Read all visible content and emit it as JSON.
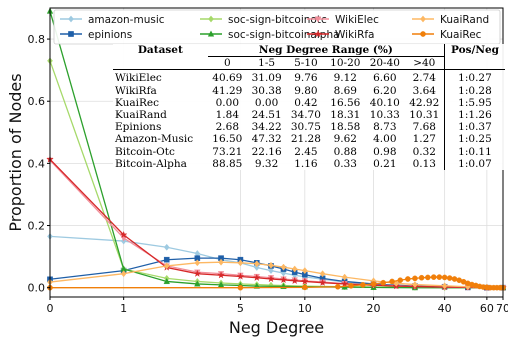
{
  "chart_data": {
    "type": "line",
    "xlabel": "Neg Degree",
    "ylabel": "Proportion of Nodes",
    "x_ticks": [
      0,
      1,
      5,
      10,
      20,
      40,
      60,
      70
    ],
    "x_tick_labels": [
      "0",
      "1",
      "5",
      "10",
      "20",
      "40",
      "60",
      "70"
    ],
    "y_ticks": [
      0.0,
      0.2,
      0.4,
      0.6,
      0.8
    ],
    "y_tick_labels": [
      "0.0",
      "0.2",
      "0.4",
      "0.6",
      "0.8"
    ],
    "ylim": [
      -0.03,
      0.9
    ],
    "xlim": [
      0,
      70
    ],
    "x_scale": "symlog",
    "grid": true,
    "legend_position": "top",
    "series": [
      {
        "name": "amazon-music",
        "color": "#9ecae1",
        "marker": "diamond",
        "points": [
          [
            0,
            0.165
          ],
          [
            1,
            0.15
          ],
          [
            2,
            0.13
          ],
          [
            3,
            0.11
          ],
          [
            4,
            0.09
          ],
          [
            5,
            0.08
          ],
          [
            6,
            0.065
          ],
          [
            7,
            0.055
          ],
          [
            8,
            0.047
          ],
          [
            9,
            0.04
          ],
          [
            10,
            0.035
          ],
          [
            12,
            0.027
          ],
          [
            15,
            0.018
          ],
          [
            20,
            0.01
          ],
          [
            25,
            0.006
          ],
          [
            30,
            0.004
          ],
          [
            40,
            0.002
          ],
          [
            50,
            0.001
          ],
          [
            60,
            0.0
          ],
          [
            70,
            0.0
          ]
        ]
      },
      {
        "name": "epinions",
        "color": "#1f5fa8",
        "marker": "square",
        "points": [
          [
            0,
            0.027
          ],
          [
            1,
            0.055
          ],
          [
            2,
            0.09
          ],
          [
            3,
            0.095
          ],
          [
            4,
            0.095
          ],
          [
            5,
            0.09
          ],
          [
            6,
            0.08
          ],
          [
            7,
            0.07
          ],
          [
            8,
            0.06
          ],
          [
            9,
            0.05
          ],
          [
            10,
            0.042
          ],
          [
            12,
            0.03
          ],
          [
            15,
            0.02
          ],
          [
            20,
            0.012
          ],
          [
            25,
            0.008
          ],
          [
            30,
            0.005
          ],
          [
            40,
            0.003
          ],
          [
            50,
            0.001
          ],
          [
            60,
            0.0
          ],
          [
            70,
            0.0
          ]
        ]
      },
      {
        "name": "soc-sign-bitcoinotc",
        "color": "#a6d96a",
        "marker": "diamond",
        "points": [
          [
            0,
            0.73
          ],
          [
            1,
            0.06
          ],
          [
            2,
            0.03
          ],
          [
            3,
            0.02
          ],
          [
            4,
            0.015
          ],
          [
            5,
            0.012
          ],
          [
            6,
            0.01
          ],
          [
            7,
            0.008
          ],
          [
            8,
            0.007
          ],
          [
            10,
            0.005
          ],
          [
            15,
            0.003
          ],
          [
            20,
            0.002
          ],
          [
            30,
            0.001
          ],
          [
            40,
            0.0
          ],
          [
            70,
            0.0
          ]
        ]
      },
      {
        "name": "soc-sign-bitcoinalpha",
        "color": "#2ca02c",
        "marker": "triangle-up",
        "points": [
          [
            0,
            0.89
          ],
          [
            1,
            0.06
          ],
          [
            2,
            0.02
          ],
          [
            3,
            0.012
          ],
          [
            4,
            0.009
          ],
          [
            5,
            0.007
          ],
          [
            6,
            0.005
          ],
          [
            8,
            0.004
          ],
          [
            10,
            0.003
          ],
          [
            15,
            0.002
          ],
          [
            20,
            0.001
          ],
          [
            30,
            0.0
          ],
          [
            70,
            0.0
          ]
        ]
      },
      {
        "name": "WikiElec",
        "color": "#f28e9a",
        "marker": "triangle-down",
        "points": [
          [
            0,
            0.41
          ],
          [
            1,
            0.16
          ],
          [
            2,
            0.07
          ],
          [
            3,
            0.05
          ],
          [
            4,
            0.045
          ],
          [
            5,
            0.04
          ],
          [
            6,
            0.036
          ],
          [
            7,
            0.032
          ],
          [
            8,
            0.028
          ],
          [
            9,
            0.025
          ],
          [
            10,
            0.022
          ],
          [
            12,
            0.018
          ],
          [
            15,
            0.013
          ],
          [
            20,
            0.009
          ],
          [
            25,
            0.006
          ],
          [
            30,
            0.004
          ],
          [
            40,
            0.002
          ],
          [
            50,
            0.001
          ],
          [
            60,
            0.0
          ],
          [
            70,
            0.0
          ]
        ]
      },
      {
        "name": "WikiRfa",
        "color": "#d62728",
        "marker": "star",
        "points": [
          [
            0,
            0.413
          ],
          [
            1,
            0.17
          ],
          [
            2,
            0.065
          ],
          [
            3,
            0.045
          ],
          [
            4,
            0.04
          ],
          [
            5,
            0.036
          ],
          [
            6,
            0.032
          ],
          [
            7,
            0.028
          ],
          [
            8,
            0.025
          ],
          [
            9,
            0.022
          ],
          [
            10,
            0.02
          ],
          [
            12,
            0.016
          ],
          [
            15,
            0.012
          ],
          [
            20,
            0.008
          ],
          [
            25,
            0.005
          ],
          [
            30,
            0.004
          ],
          [
            40,
            0.002
          ],
          [
            50,
            0.001
          ],
          [
            60,
            0.0
          ],
          [
            70,
            0.0
          ]
        ]
      },
      {
        "name": "KuaiRand",
        "color": "#fdb863",
        "marker": "diamond",
        "points": [
          [
            0,
            0.018
          ],
          [
            1,
            0.045
          ],
          [
            2,
            0.07
          ],
          [
            3,
            0.08
          ],
          [
            4,
            0.082
          ],
          [
            5,
            0.08
          ],
          [
            6,
            0.077
          ],
          [
            7,
            0.072
          ],
          [
            8,
            0.066
          ],
          [
            9,
            0.06
          ],
          [
            10,
            0.055
          ],
          [
            12,
            0.045
          ],
          [
            15,
            0.034
          ],
          [
            20,
            0.022
          ],
          [
            25,
            0.014
          ],
          [
            30,
            0.01
          ],
          [
            40,
            0.006
          ],
          [
            50,
            0.003
          ],
          [
            60,
            0.001
          ],
          [
            70,
            0.0
          ]
        ]
      },
      {
        "name": "KuaiRec",
        "color": "#f07f0a",
        "marker": "circle",
        "points": [
          [
            0,
            0.0
          ],
          [
            5,
            0.0
          ],
          [
            10,
            0.001
          ],
          [
            14,
            0.003
          ],
          [
            16,
            0.006
          ],
          [
            18,
            0.009
          ],
          [
            20,
            0.012
          ],
          [
            22,
            0.016
          ],
          [
            24,
            0.02
          ],
          [
            26,
            0.024
          ],
          [
            28,
            0.028
          ],
          [
            30,
            0.03
          ],
          [
            32,
            0.032
          ],
          [
            34,
            0.033
          ],
          [
            36,
            0.034
          ],
          [
            38,
            0.034
          ],
          [
            40,
            0.033
          ],
          [
            42,
            0.031
          ],
          [
            44,
            0.028
          ],
          [
            46,
            0.024
          ],
          [
            48,
            0.019
          ],
          [
            50,
            0.014
          ],
          [
            52,
            0.01
          ],
          [
            54,
            0.007
          ],
          [
            56,
            0.004
          ],
          [
            58,
            0.002
          ],
          [
            60,
            0.001
          ],
          [
            62,
            0.0
          ],
          [
            64,
            0.0
          ],
          [
            66,
            0.0
          ],
          [
            68,
            0.0
          ],
          [
            70,
            0.0
          ]
        ]
      }
    ],
    "table": {
      "corner_label": "Dataset",
      "group_label": "Neg Degree Range (%)",
      "last_label": "Pos/Neg",
      "columns": [
        "0",
        "1-5",
        "5-10",
        "10-20",
        "20-40",
        ">40"
      ],
      "rows": [
        {
          "name": "WikiElec",
          "values": [
            "40.69",
            "31.09",
            "9.76",
            "9.12",
            "6.60",
            "2.74"
          ],
          "ratio": "1:0.27"
        },
        {
          "name": "WikiRfa",
          "values": [
            "41.29",
            "30.38",
            "9.80",
            "8.69",
            "6.20",
            "3.64"
          ],
          "ratio": "1:0.28"
        },
        {
          "name": "KuaiRec",
          "values": [
            "0.00",
            "0.00",
            "0.42",
            "16.56",
            "40.10",
            "42.92"
          ],
          "ratio": "1:5.95"
        },
        {
          "name": "KuaiRand",
          "values": [
            "1.84",
            "24.51",
            "34.70",
            "18.31",
            "10.33",
            "10.31"
          ],
          "ratio": "1:1.26"
        },
        {
          "name": "Epinions",
          "values": [
            "2.68",
            "34.22",
            "30.75",
            "18.58",
            "8.73",
            "7.68"
          ],
          "ratio": "1:0.37"
        },
        {
          "name": "Amazon-Music",
          "values": [
            "16.50",
            "47.32",
            "21.28",
            "9.62",
            "4.00",
            "1.27"
          ],
          "ratio": "1:0.25"
        },
        {
          "name": "Bitcoin-Otc",
          "values": [
            "73.21",
            "22.16",
            "2.45",
            "0.88",
            "0.98",
            "0.32"
          ],
          "ratio": "1:0.11"
        },
        {
          "name": "Bitcoin-Alpha",
          "values": [
            "88.85",
            "9.32",
            "1.16",
            "0.33",
            "0.21",
            "0.13"
          ],
          "ratio": "1:0.07"
        }
      ]
    }
  }
}
